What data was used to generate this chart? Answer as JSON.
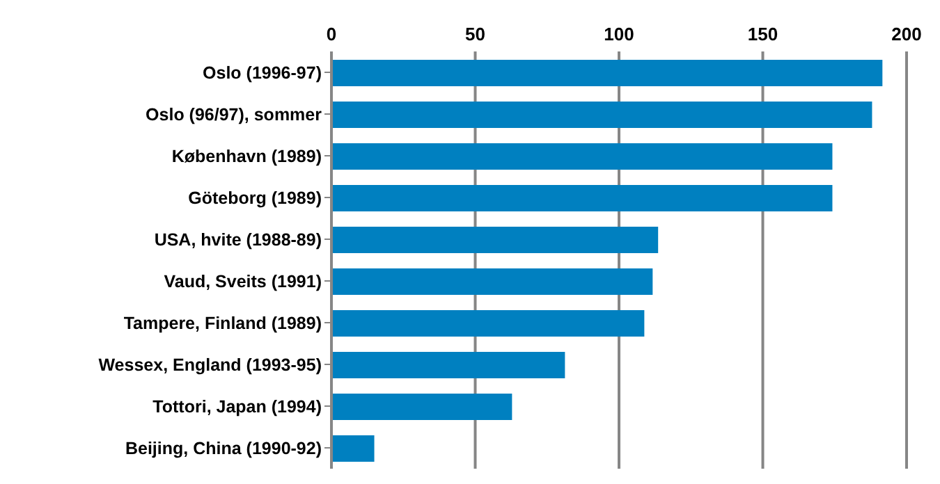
{
  "chart_data": {
    "type": "bar",
    "orientation": "horizontal",
    "categories": [
      "Oslo (1996-97)",
      "Oslo (96/97), sommer",
      "København (1989)",
      "Göteborg (1989)",
      "USA, hvite (1988-89)",
      "Vaud, Sveits (1991)",
      "Tampere, Finland (1989)",
      "Wessex, England (1993-95)",
      "Tottori, Japan (1994)",
      "Beijing, China (1990-92)"
    ],
    "values": [
      191.6,
      188,
      174.2,
      174.2,
      113.6,
      111.7,
      108.8,
      81.2,
      62.8,
      14.9
    ],
    "color": "#0080c0",
    "xlim": [
      0,
      200
    ],
    "xticks": [
      0,
      50,
      100,
      150,
      200
    ],
    "grid": "x"
  }
}
